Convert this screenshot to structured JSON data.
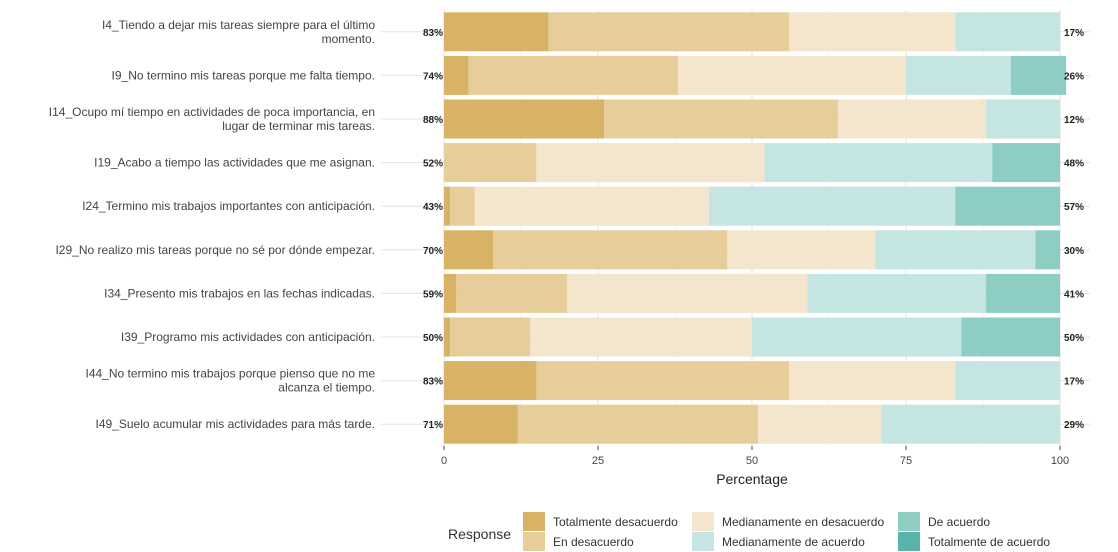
{
  "chart_data": {
    "type": "bar",
    "orientation": "horizontal",
    "stacked": true,
    "xlabel": "Percentage",
    "xlim": [
      0,
      100
    ],
    "xticks": [
      "0",
      "25",
      "50",
      "75",
      "100"
    ],
    "grid": true,
    "categories": [
      "I4_Tiendo a dejar mis tareas siempre para el último momento.",
      "I9_No termino mis tareas porque me falta tiempo.",
      "I14_Ocupo mí tiempo en actividades de poca importancia, en lugar de terminar mis tareas.",
      "I19_Acabo a tiempo las actividades que me asignan.",
      "I24_Termino mis trabajos importantes con anticipación.",
      "I29_No realizo mis tareas porque no sé por dónde empezar.",
      "I34_Presento mis trabajos en las fechas indicadas.",
      "I39_Programo mis actividades con anticipación.",
      "I44_No termino mis trabajos porque pienso que no me alcanza el tiempo.",
      "I49_Suelo acumular mis actividades para más tarde."
    ],
    "series": [
      {
        "name": "Totalmente desacuerdo",
        "color": "#d8b365",
        "values": [
          17,
          4,
          26,
          0,
          1,
          8,
          2,
          1,
          15,
          12
        ]
      },
      {
        "name": "En desacuerdo",
        "color": "#e6cd99",
        "values": [
          39,
          34,
          38,
          15,
          4,
          38,
          18,
          13,
          41,
          39
        ]
      },
      {
        "name": "Medianamente en desacuerdo",
        "color": "#f3e6cc",
        "values": [
          27,
          37,
          24,
          37,
          38,
          24,
          39,
          36,
          27,
          20
        ]
      },
      {
        "name": "Medianamente de acuerdo",
        "color": "#c5e5e2",
        "values": [
          17,
          17,
          12,
          37,
          40,
          26,
          29,
          34,
          17,
          29
        ]
      },
      {
        "name": "De acuerdo",
        "color": "#8ecdc4",
        "values": [
          0,
          9,
          0,
          11,
          17,
          4,
          12,
          16,
          0,
          0
        ]
      },
      {
        "name": "Totalmente de acuerdo",
        "color": "#5ab4ac",
        "values": [
          0,
          0,
          0,
          0,
          0,
          0,
          0,
          0,
          0,
          0
        ]
      }
    ],
    "left_labels": [
      "83%",
      "74%",
      "88%",
      "52%",
      "43%",
      "70%",
      "59%",
      "50%",
      "83%",
      "71%"
    ],
    "right_labels": [
      "17%",
      "26%",
      "12%",
      "48%",
      "57%",
      "30%",
      "41%",
      "50%",
      "17%",
      "29%"
    ],
    "legend": {
      "title": "Response",
      "placement": "bottom"
    }
  }
}
